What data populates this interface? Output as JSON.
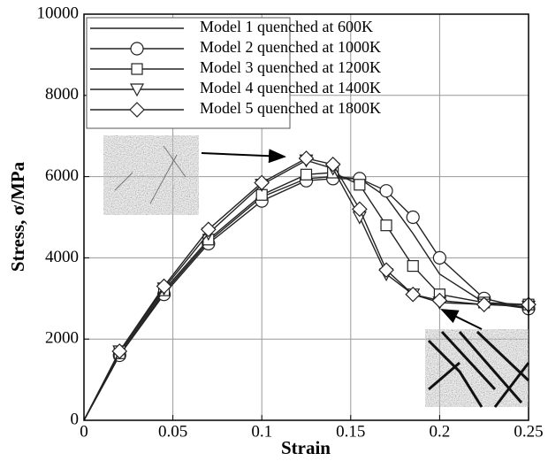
{
  "chart_data": {
    "type": "line",
    "xlabel": "Strain",
    "ylabel": "Stress, σ/MPa",
    "x": [
      0,
      0.02,
      0.045,
      0.07,
      0.1,
      0.125,
      0.14,
      0.155,
      0.17,
      0.185,
      0.2,
      0.225,
      0.25
    ],
    "series": [
      {
        "name": "Model 1 quenched at 600K",
        "color": "#222222",
        "marker": "none",
        "values": [
          0,
          1600,
          3150,
          4400,
          5500,
          5950,
          6000,
          5950,
          5500,
          4600,
          3600,
          2900,
          2750
        ]
      },
      {
        "name": "Model 2 quenched at 1000K",
        "color": "#222222",
        "marker": "circle",
        "values": [
          0,
          1600,
          3100,
          4350,
          5400,
          5900,
          5950,
          5950,
          5650,
          5000,
          4000,
          3000,
          2750
        ]
      },
      {
        "name": "Model 3 quenched at 1200K",
        "color": "#222222",
        "marker": "square",
        "values": [
          0,
          1650,
          3200,
          4450,
          5550,
          6050,
          6100,
          5800,
          4800,
          3800,
          3100,
          2900,
          2850
        ]
      },
      {
        "name": "Model 4 quenched at 1400K",
        "color": "#222222",
        "marker": "triangle-down",
        "values": [
          0,
          1700,
          3250,
          4600,
          5800,
          6400,
          6200,
          5000,
          3600,
          3100,
          2900,
          2850,
          2800
        ]
      },
      {
        "name": "Model 5 quenched at 1800K",
        "color": "#222222",
        "marker": "diamond",
        "values": [
          0,
          1700,
          3300,
          4700,
          5850,
          6450,
          6300,
          5200,
          3700,
          3100,
          2950,
          2850,
          2850
        ]
      }
    ],
    "xlim": [
      0,
      0.25
    ],
    "xticks": [
      0,
      0.05,
      0.1,
      0.15,
      0.2,
      0.25
    ],
    "ylim": [
      0,
      10000
    ],
    "yticks": [
      0,
      2000,
      4000,
      6000,
      8000,
      10000
    ],
    "grid": true,
    "legend": "upper left"
  }
}
